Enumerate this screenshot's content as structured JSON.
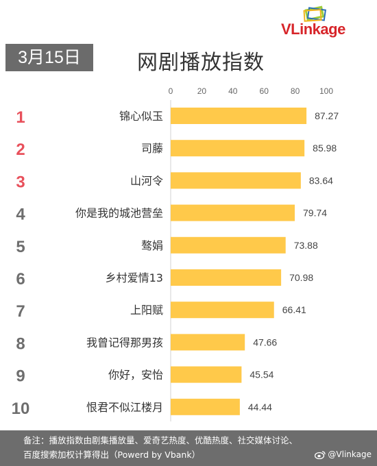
{
  "brand": {
    "logo_text_prefix": "VL",
    "logo_text_suffix": "inkage"
  },
  "date_badge": "3月15日",
  "chart_data": {
    "type": "bar",
    "orientation": "horizontal",
    "title": "网剧播放指数",
    "categories": [
      "锦心似玉",
      "司藤",
      "山河令",
      "你是我的城池营垒",
      "骜娟",
      "乡村爱情13",
      "上阳赋",
      "我曾记得那男孩",
      "你好，安怡",
      "恨君不似江楼月"
    ],
    "ranks": [
      "1",
      "2",
      "3",
      "4",
      "5",
      "6",
      "7",
      "8",
      "9",
      "10"
    ],
    "values": [
      87.27,
      85.98,
      83.64,
      79.74,
      73.88,
      70.98,
      66.41,
      47.66,
      45.54,
      44.44
    ],
    "value_labels": [
      "87.27",
      "85.98",
      "83.64",
      "79.74",
      "73.88",
      "70.98",
      "66.41",
      "47.66",
      "45.54",
      "44.44"
    ],
    "xlim": [
      0,
      100
    ],
    "xticks": [
      "0",
      "20",
      "40",
      "60",
      "80",
      "100"
    ],
    "tick_position": "top",
    "grid": false,
    "bar_color": "#ffc94a",
    "rank_colors": {
      "top3": "#e8505b",
      "others": "#6e6e6e"
    }
  },
  "footer": {
    "note_line1": "备注：播放指数由剧集播放量、爱奇艺热度、优酷热度、社交媒体讨论、",
    "note_line2": "百度搜索加权计算得出（Powerd by Vbank）",
    "weibo_handle": "@Vlinkage"
  }
}
